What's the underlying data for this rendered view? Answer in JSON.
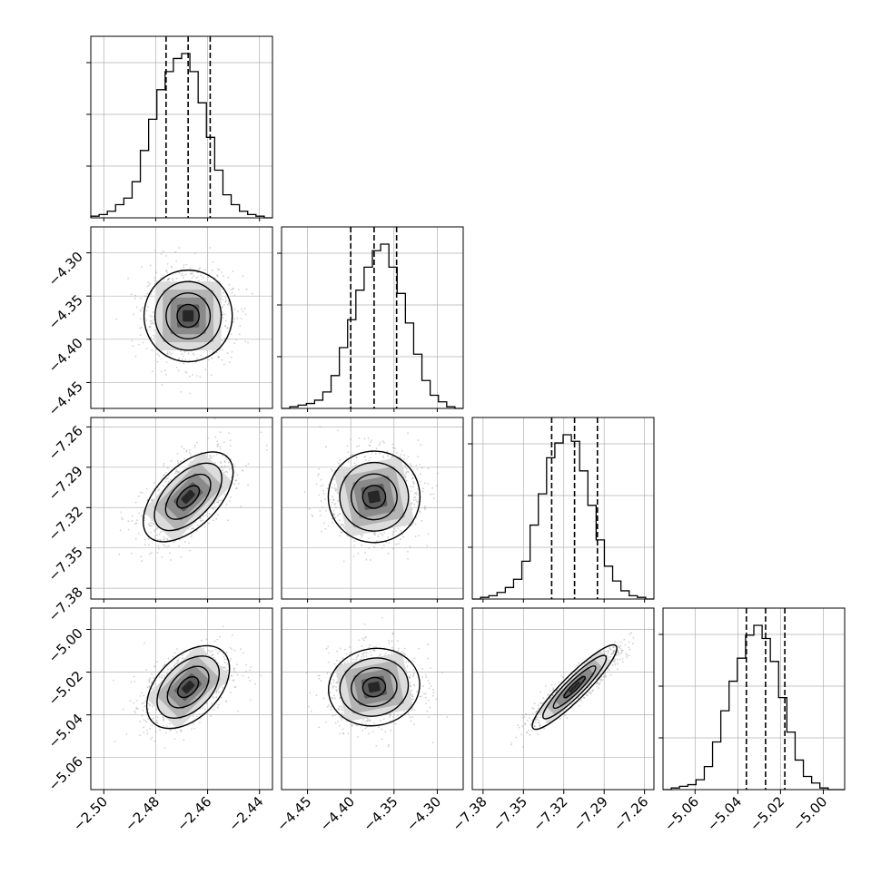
{
  "chart_data": {
    "type": "corner",
    "n_params": 4,
    "params": [
      {
        "range": [
          -2.505,
          -2.435
        ],
        "ticks": [
          -2.5,
          -2.48,
          -2.46,
          -2.44
        ],
        "tick_labels": [
          "−2.50",
          "−2.48",
          "−2.46",
          "−2.44"
        ],
        "quantiles": [
          -2.476,
          -2.4675,
          -2.459
        ],
        "hist": [
          0.01,
          0.02,
          0.04,
          0.08,
          0.12,
          0.22,
          0.41,
          0.6,
          0.78,
          0.89,
          0.97,
          1.0,
          0.89,
          0.7,
          0.49,
          0.29,
          0.14,
          0.08,
          0.04,
          0.02,
          0.01,
          0.0
        ]
      },
      {
        "range": [
          -4.48,
          -4.27
        ],
        "ticks": [
          -4.45,
          -4.4,
          -4.35,
          -4.3
        ],
        "tick_labels": [
          "−4.45",
          "−4.40",
          "−4.35",
          "−4.30"
        ],
        "quantiles": [
          -4.4,
          -4.373,
          -4.347
        ],
        "hist": [
          0.0,
          0.01,
          0.02,
          0.03,
          0.05,
          0.1,
          0.2,
          0.37,
          0.54,
          0.72,
          0.86,
          0.96,
          1.0,
          0.86,
          0.7,
          0.52,
          0.33,
          0.17,
          0.08,
          0.04,
          0.01,
          0.0
        ]
      },
      {
        "range": [
          -7.388,
          -7.253
        ],
        "ticks": [
          -7.38,
          -7.35,
          -7.32,
          -7.29,
          -7.26
        ],
        "tick_labels": [
          "−7.38",
          "−7.35",
          "−7.32",
          "−7.29",
          "−7.26"
        ],
        "quantiles": [
          -7.329,
          -7.312,
          -7.295
        ],
        "hist": [
          0.0,
          0.01,
          0.02,
          0.04,
          0.07,
          0.12,
          0.23,
          0.45,
          0.64,
          0.86,
          0.95,
          1.0,
          0.96,
          0.78,
          0.57,
          0.36,
          0.2,
          0.11,
          0.05,
          0.02,
          0.01,
          0.0
        ]
      },
      {
        "range": [
          -5.075,
          -4.99
        ],
        "ticks": [
          -5.06,
          -5.04,
          -5.02,
          -5.0
        ],
        "tick_labels": [
          "−5.06",
          "−5.04",
          "−5.02",
          "−5.00"
        ],
        "quantiles": [
          -5.036,
          -5.027,
          -5.018
        ],
        "hist": [
          0.0,
          0.01,
          0.02,
          0.03,
          0.06,
          0.14,
          0.29,
          0.48,
          0.66,
          0.8,
          0.94,
          1.0,
          0.92,
          0.78,
          0.56,
          0.35,
          0.18,
          0.08,
          0.04,
          0.01,
          0.0,
          0.0
        ]
      }
    ],
    "pairs": [
      {
        "x": 0,
        "y": 1,
        "center": [
          -2.4675,
          -4.373
        ],
        "rho": 0.0
      },
      {
        "x": 0,
        "y": 2,
        "center": [
          -2.4675,
          -7.312
        ],
        "rho": 0.55
      },
      {
        "x": 1,
        "y": 2,
        "center": [
          -4.373,
          -7.312
        ],
        "rho": 0.05
      },
      {
        "x": 0,
        "y": 3,
        "center": [
          -2.4675,
          -5.027
        ],
        "rho": 0.45
      },
      {
        "x": 1,
        "y": 3,
        "center": [
          -4.373,
          -5.027
        ],
        "rho": 0.05
      },
      {
        "x": 2,
        "y": 3,
        "center": [
          -7.312,
          -5.027
        ],
        "rho": 0.92
      }
    ],
    "contour_levels_sigma": [
      0.5,
      1.0,
      1.5,
      2.0
    ],
    "grid": true,
    "colors": {
      "line": "#000000",
      "grid": "#b0b0b0",
      "scatter": "#9a9a9a"
    }
  }
}
